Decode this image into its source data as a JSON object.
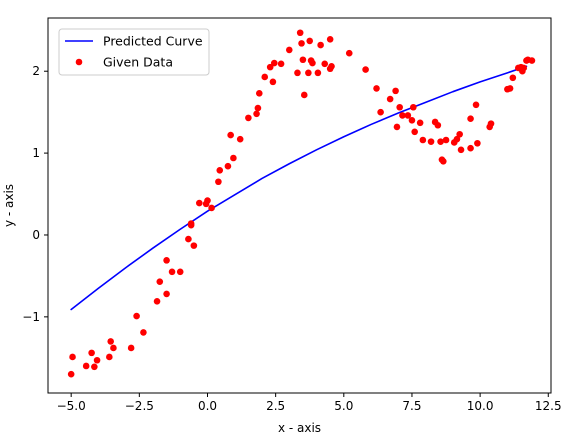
{
  "chart_data": {
    "type": "scatter",
    "title": "",
    "xlabel": "x - axis",
    "ylabel": "y - axis",
    "xlim": [
      -5.85,
      12.6
    ],
    "ylim": [
      -1.93,
      2.65
    ],
    "xticks": [
      -5.0,
      -2.5,
      0.0,
      2.5,
      5.0,
      7.5,
      10.0,
      12.5
    ],
    "xtick_labels": [
      "−5.0",
      "−2.5",
      "0.0",
      "2.5",
      "5.0",
      "7.5",
      "10.0",
      "12.5"
    ],
    "yticks": [
      -1,
      0,
      1,
      2
    ],
    "ytick_labels": [
      "−1",
      "0",
      "1",
      "2"
    ],
    "grid": false,
    "legend_position": "top-left",
    "series": [
      {
        "name": "Predicted Curve",
        "kind": "line",
        "color": "#0000ff",
        "x": [
          -5.0,
          -4.0,
          -3.0,
          -2.0,
          -1.0,
          0.0,
          1.0,
          2.0,
          3.0,
          4.0,
          5.0,
          6.0,
          7.0,
          8.0,
          9.0,
          10.0,
          11.0,
          11.7
        ],
        "y": [
          -0.91,
          -0.65,
          -0.4,
          -0.16,
          0.07,
          0.29,
          0.49,
          0.69,
          0.87,
          1.04,
          1.2,
          1.35,
          1.49,
          1.62,
          1.75,
          1.87,
          1.98,
          2.06
        ]
      },
      {
        "name": "Given Data",
        "kind": "scatter",
        "color": "#ff0000",
        "points": [
          [
            -5.0,
            -1.7
          ],
          [
            -4.95,
            -1.49
          ],
          [
            -4.45,
            -1.6
          ],
          [
            -4.25,
            -1.44
          ],
          [
            -4.15,
            -1.61
          ],
          [
            -4.05,
            -1.53
          ],
          [
            -3.6,
            -1.49
          ],
          [
            -3.55,
            -1.3
          ],
          [
            -3.45,
            -1.38
          ],
          [
            -2.8,
            -1.38
          ],
          [
            -2.6,
            -0.99
          ],
          [
            -2.35,
            -1.19
          ],
          [
            -1.85,
            -0.81
          ],
          [
            -1.75,
            -0.57
          ],
          [
            -1.5,
            -0.31
          ],
          [
            -1.5,
            -0.72
          ],
          [
            -1.3,
            -0.45
          ],
          [
            -1.0,
            -0.45
          ],
          [
            -0.7,
            -0.05
          ],
          [
            -0.6,
            0.12
          ],
          [
            -0.6,
            0.14
          ],
          [
            -0.5,
            -0.13
          ],
          [
            -0.3,
            0.39
          ],
          [
            -0.05,
            0.38
          ],
          [
            0.0,
            0.42
          ],
          [
            0.15,
            0.33
          ],
          [
            0.4,
            0.65
          ],
          [
            0.45,
            0.79
          ],
          [
            0.75,
            0.84
          ],
          [
            0.85,
            1.22
          ],
          [
            0.95,
            0.94
          ],
          [
            1.2,
            1.17
          ],
          [
            1.5,
            1.43
          ],
          [
            1.8,
            1.48
          ],
          [
            1.85,
            1.55
          ],
          [
            1.9,
            1.73
          ],
          [
            2.1,
            1.93
          ],
          [
            2.3,
            2.05
          ],
          [
            2.4,
            1.87
          ],
          [
            2.45,
            2.1
          ],
          [
            2.7,
            2.09
          ],
          [
            3.0,
            2.26
          ],
          [
            3.3,
            1.98
          ],
          [
            3.4,
            2.47
          ],
          [
            3.45,
            2.34
          ],
          [
            3.5,
            2.14
          ],
          [
            3.55,
            1.71
          ],
          [
            3.7,
            1.98
          ],
          [
            3.8,
            2.13
          ],
          [
            3.75,
            2.37
          ],
          [
            3.85,
            2.1
          ],
          [
            4.05,
            1.98
          ],
          [
            4.15,
            2.32
          ],
          [
            4.3,
            2.09
          ],
          [
            4.5,
            2.39
          ],
          [
            4.55,
            2.06
          ],
          [
            4.5,
            2.03
          ],
          [
            5.2,
            2.22
          ],
          [
            5.8,
            2.02
          ],
          [
            6.2,
            1.79
          ],
          [
            6.35,
            1.5
          ],
          [
            6.7,
            1.66
          ],
          [
            6.9,
            1.76
          ],
          [
            6.95,
            1.32
          ],
          [
            7.05,
            1.56
          ],
          [
            7.15,
            1.46
          ],
          [
            7.35,
            1.46
          ],
          [
            7.5,
            1.4
          ],
          [
            7.55,
            1.56
          ],
          [
            7.6,
            1.26
          ],
          [
            7.8,
            1.37
          ],
          [
            7.9,
            1.16
          ],
          [
            8.2,
            1.14
          ],
          [
            8.35,
            1.38
          ],
          [
            8.45,
            1.34
          ],
          [
            8.55,
            1.14
          ],
          [
            8.6,
            0.92
          ],
          [
            8.65,
            0.9
          ],
          [
            8.75,
            1.16
          ],
          [
            9.05,
            1.13
          ],
          [
            9.15,
            1.17
          ],
          [
            9.25,
            1.23
          ],
          [
            9.3,
            1.04
          ],
          [
            9.65,
            1.06
          ],
          [
            9.65,
            1.42
          ],
          [
            9.85,
            1.59
          ],
          [
            9.9,
            1.12
          ],
          [
            10.35,
            1.32
          ],
          [
            10.4,
            1.36
          ],
          [
            11.0,
            1.78
          ],
          [
            11.1,
            1.79
          ],
          [
            11.2,
            1.92
          ],
          [
            11.4,
            2.04
          ],
          [
            11.5,
            2.05
          ],
          [
            11.55,
            2.0
          ],
          [
            11.6,
            2.04
          ],
          [
            11.7,
            2.13
          ],
          [
            11.75,
            2.14
          ],
          [
            11.9,
            2.13
          ]
        ]
      }
    ]
  }
}
